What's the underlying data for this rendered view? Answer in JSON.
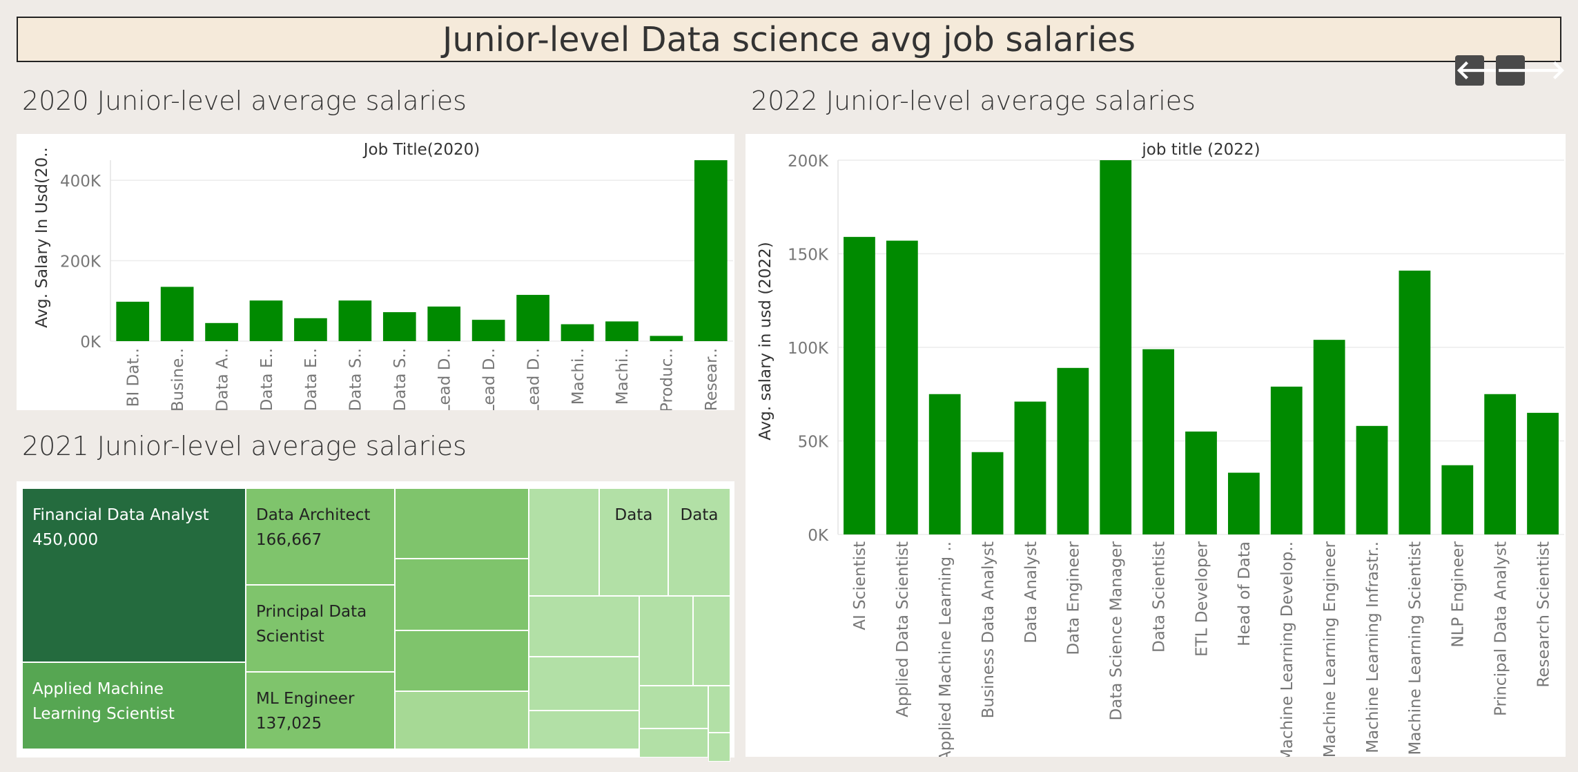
{
  "dashboard": {
    "title": "Junior-level Data science avg job salaries",
    "nav": {
      "prev_icon": "arrow-left-icon",
      "next_icon": "arrow-right-icon",
      "prev_glyph": "🡐",
      "next_glyph": "🡒"
    },
    "bar_color": "#008a00"
  },
  "sections": {
    "s2020": "2020 Junior-level average salaries",
    "s2021": "2021 Junior-level average salaries",
    "s2022": "2022 Junior-level average salaries"
  },
  "chart_data": [
    {
      "id": "c2020",
      "type": "bar",
      "title": "Job Title(2020)",
      "ylabel": "Avg. Salary In Usd(20..",
      "xlabel": "",
      "ylim": [
        0,
        450000
      ],
      "yticks": [
        0,
        200000,
        400000
      ],
      "ytick_labels": [
        "0K",
        "200K",
        "400K"
      ],
      "categories": [
        "BI Dat..",
        "Busine..",
        "Data A..",
        "Data E..",
        "Data E..",
        "Data S..",
        "Data S..",
        "Lead D..",
        "Lead D..",
        "Lead D..",
        "Machi..",
        "Machi..",
        "Produc..",
        "Resear.."
      ],
      "values": [
        98000,
        135000,
        45000,
        101000,
        57000,
        101000,
        72000,
        86000,
        53000,
        115000,
        42000,
        49000,
        13000,
        450000
      ],
      "grid": true
    },
    {
      "id": "c2022",
      "type": "bar",
      "title": "job title (2022)",
      "ylabel": "Avg. salary in usd (2022)",
      "xlabel": "",
      "ylim": [
        0,
        200000
      ],
      "yticks": [
        0,
        50000,
        100000,
        150000,
        200000
      ],
      "ytick_labels": [
        "0K",
        "50K",
        "100K",
        "150K",
        "200K"
      ],
      "categories": [
        "AI Scientist",
        "Applied Data Scientist",
        "Applied Machine Learning ..",
        "Business Data Analyst",
        "Data Analyst",
        "Data Engineer",
        "Data Science Manager",
        "Data Scientist",
        "ETL Developer",
        "Head of Data",
        "Machine Learning Develop..",
        "Machine Learning Engineer",
        "Machine Learning Infrastr..",
        "Machine Learning Scientist",
        "NLP Engineer",
        "Principal Data Analyst",
        "Research Scientist"
      ],
      "values": [
        159000,
        157000,
        75000,
        44000,
        71000,
        89000,
        200000,
        99000,
        55000,
        33000,
        79000,
        104000,
        58000,
        141000,
        37000,
        75000,
        65000
      ],
      "grid": true
    },
    {
      "id": "t2021",
      "type": "treemap",
      "labeled_items": [
        {
          "name": "Financial Data Analyst",
          "value": 450000
        },
        {
          "name": "Applied Machine Learning Scientist",
          "value": null
        },
        {
          "name": "Data Architect",
          "value": 166667
        },
        {
          "name": "Principal Data Scientist",
          "value": null
        },
        {
          "name": "ML Engineer",
          "value": 137025
        },
        {
          "name": "Data",
          "value": null
        },
        {
          "name": "Data",
          "value": null
        }
      ]
    }
  ],
  "treemap": {
    "cells": [
      {
        "color": "#246b3e",
        "textColor": "#ffffff",
        "name": "Financial Data Analyst",
        "value": "450,000"
      },
      {
        "color": "#56a652",
        "textColor": "#ffffff",
        "name": "Applied Machine Learning Scientist",
        "value": ""
      },
      {
        "color": "#7fc46c",
        "textColor": "#222222",
        "name": "Data Architect",
        "value": "166,667"
      },
      {
        "color": "#7fc46c",
        "textColor": "#222222",
        "name": "Principal Data Scientist",
        "value": ""
      },
      {
        "color": "#7fc46c",
        "textColor": "#222222",
        "name": "ML Engineer",
        "value": "137,025"
      },
      {
        "color": "#7fc46c",
        "textColor": "#222222",
        "name": "",
        "value": ""
      },
      {
        "color": "#7fc46c",
        "textColor": "#222222",
        "name": "",
        "value": ""
      },
      {
        "color": "#7fc46c",
        "textColor": "#222222",
        "name": "",
        "value": ""
      },
      {
        "color": "#a6d995",
        "textColor": "#222222",
        "name": "",
        "value": ""
      },
      {
        "color": "#b2e0a6",
        "textColor": "#222222",
        "name": "",
        "value": ""
      },
      {
        "color": "#b2e0a6",
        "textColor": "#222222",
        "name": "Data",
        "value": ""
      },
      {
        "color": "#b2e0a6",
        "textColor": "#222222",
        "name": "Data",
        "value": ""
      },
      {
        "color": "#b2e0a6",
        "textColor": "#222222",
        "name": "",
        "value": ""
      },
      {
        "color": "#b2e0a6",
        "textColor": "#222222",
        "name": "",
        "value": ""
      },
      {
        "color": "#b2e0a6",
        "textColor": "#222222",
        "name": "",
        "value": ""
      },
      {
        "color": "#b2e0a6",
        "textColor": "#222222",
        "name": "",
        "value": ""
      },
      {
        "color": "#b2e0a6",
        "textColor": "#222222",
        "name": "",
        "value": ""
      },
      {
        "color": "#b2e0a6",
        "textColor": "#222222",
        "name": "",
        "value": ""
      },
      {
        "color": "#b2e0a6",
        "textColor": "#222222",
        "name": "",
        "value": ""
      },
      {
        "color": "#b2e0a6",
        "textColor": "#222222",
        "name": "",
        "value": ""
      },
      {
        "color": "#b2e0a6",
        "textColor": "#222222",
        "name": "",
        "value": ""
      }
    ]
  }
}
